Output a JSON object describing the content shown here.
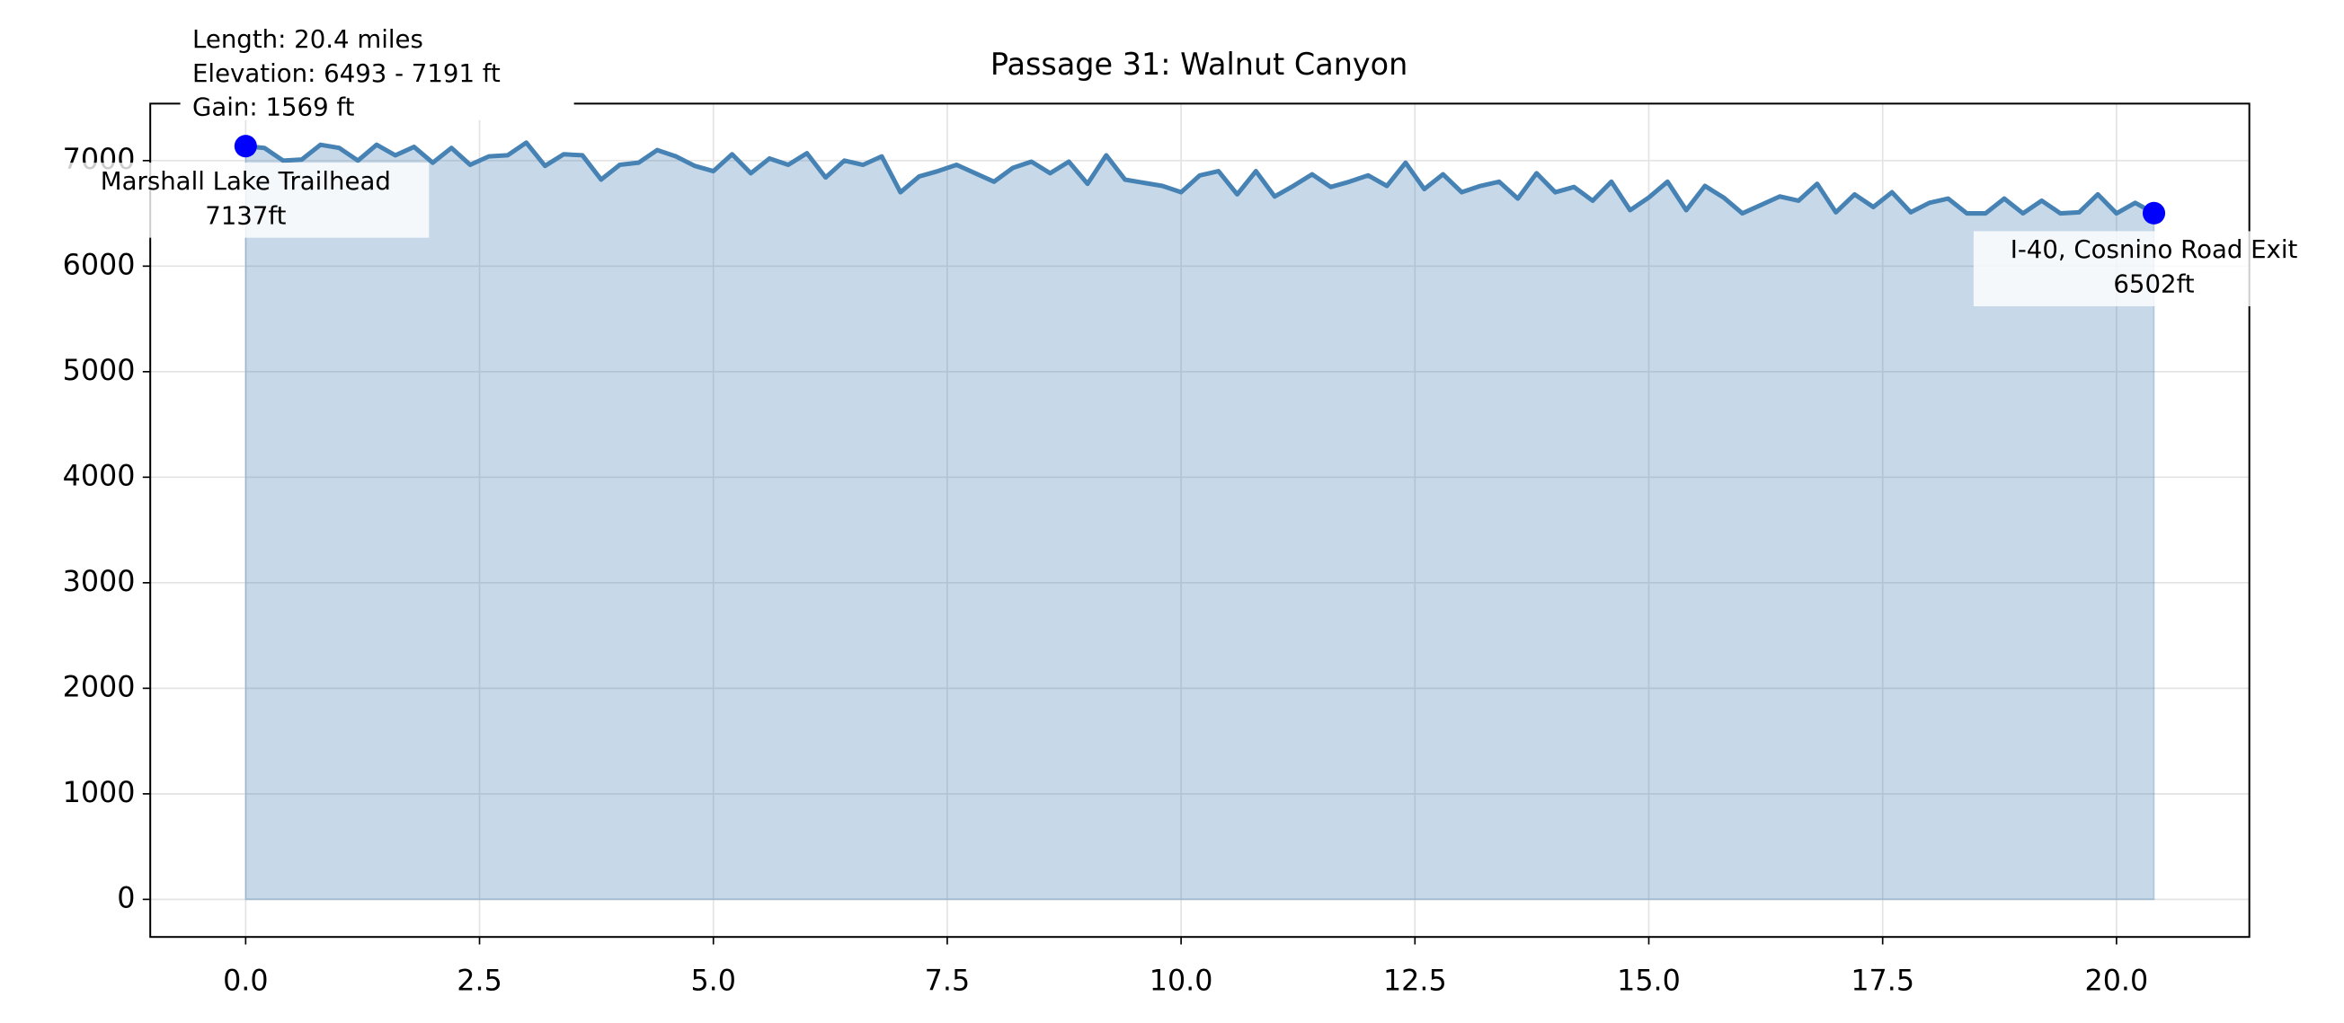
{
  "chart_data": {
    "type": "area-line",
    "title": "Passage 31: Walnut Canyon",
    "info_lines": [
      "Length: 20.4 miles",
      "Elevation: 6493 - 7191 ft",
      "Gain: 1569 ft"
    ],
    "x": [
      0,
      0.2,
      0.4,
      0.6,
      0.8,
      1,
      1.2,
      1.4,
      1.6,
      1.8,
      2,
      2.2,
      2.4,
      2.6,
      2.8,
      3,
      3.2,
      3.4,
      3.6,
      3.8,
      4,
      4.2,
      4.4,
      4.6,
      4.8,
      5,
      5.2,
      5.4,
      5.6,
      5.8,
      6,
      6.2,
      6.4,
      6.6,
      6.8,
      7,
      7.2,
      7.4,
      7.6,
      7.8,
      8,
      8.2,
      8.4,
      8.6,
      8.8,
      9,
      9.2,
      9.4,
      9.6,
      9.8,
      10,
      10.2,
      10.4,
      10.6,
      10.8,
      11,
      11.2,
      11.4,
      11.6,
      11.8,
      12,
      12.2,
      12.4,
      12.6,
      12.8,
      13,
      13.2,
      13.4,
      13.6,
      13.8,
      14,
      14.2,
      14.4,
      14.6,
      14.8,
      15,
      15.2,
      15.4,
      15.6,
      15.8,
      16,
      16.2,
      16.4,
      16.6,
      16.8,
      17,
      17.2,
      17.4,
      17.6,
      17.8,
      18,
      18.2,
      18.4,
      18.6,
      18.8,
      19,
      19.2,
      19.4,
      19.6,
      19.8,
      20,
      20.2,
      20.4
    ],
    "values": [
      7137,
      7120,
      7000,
      7010,
      7150,
      7120,
      7000,
      7150,
      7050,
      7130,
      6980,
      7120,
      6960,
      7040,
      7050,
      7170,
      6950,
      7060,
      7050,
      6820,
      6960,
      6980,
      7100,
      7040,
      6950,
      6900,
      7060,
      6880,
      7020,
      6960,
      7070,
      6840,
      7000,
      6960,
      7040,
      6700,
      6850,
      6900,
      6960,
      6880,
      6800,
      6930,
      6990,
      6880,
      6990,
      6780,
      7050,
      6820,
      6790,
      6760,
      6700,
      6860,
      6900,
      6680,
      6900,
      6660,
      6760,
      6870,
      6750,
      6800,
      6860,
      6760,
      6980,
      6730,
      6870,
      6700,
      6760,
      6800,
      6640,
      6880,
      6700,
      6750,
      6620,
      6800,
      6530,
      6650,
      6800,
      6530,
      6760,
      6650,
      6500,
      6580,
      6660,
      6620,
      6780,
      6510,
      6680,
      6560,
      6700,
      6510,
      6600,
      6640,
      6500,
      6500,
      6640,
      6500,
      6620,
      6500,
      6510,
      6680,
      6500,
      6600,
      6502
    ],
    "color": "#4682b4",
    "markers": [
      {
        "x": 0,
        "y": 7137,
        "label": "Marshall Lake Trailhead",
        "value_label": "7137ft"
      },
      {
        "x": 20.4,
        "y": 6502,
        "label": "I-40, Cosnino Road Exit",
        "value_label": "6502ft"
      }
    ],
    "marker_color": "#0000ff",
    "xlim": [
      -1.02,
      21.42
    ],
    "xticks": [
      {
        "value": 0,
        "label": "0.0"
      },
      2.5,
      {
        "value": 5,
        "label": "5.0"
      },
      7.5,
      {
        "value": 10,
        "label": "10.0"
      },
      12.5,
      {
        "value": 15,
        "label": "15.0"
      },
      17.5,
      {
        "value": 20,
        "label": "20.0"
      }
    ],
    "ylim": [
      -356,
      7540
    ],
    "yticks": [
      0,
      1000,
      2000,
      3000,
      4000,
      5000,
      6000,
      7000
    ],
    "grid": true
  }
}
